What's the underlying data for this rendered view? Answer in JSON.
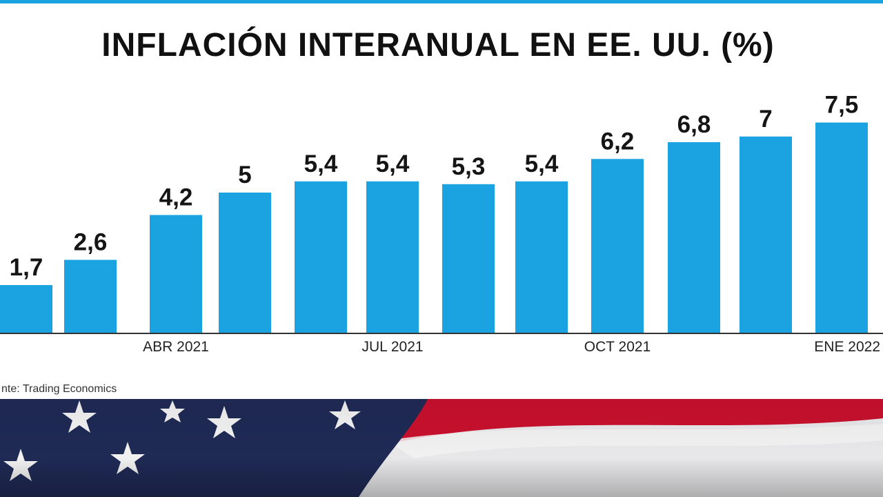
{
  "chart_data": {
    "type": "bar",
    "title": "INFLACIÓN INTERANUAL EN EE. UU. (%)",
    "categories": [
      "",
      "",
      "ABR 2021",
      "",
      "",
      "JUL 2021",
      "",
      "",
      "OCT 2021",
      "",
      "",
      "ENE 2022"
    ],
    "values": [
      1.7,
      2.6,
      4.2,
      5,
      5.4,
      5.4,
      5.3,
      5.4,
      6.2,
      6.8,
      7,
      7.5
    ],
    "value_labels": [
      "1,7",
      "2,6",
      "4,2",
      "5",
      "5,4",
      "5,4",
      "5,3",
      "5,4",
      "6,2",
      "6,8",
      "7",
      "7,5"
    ],
    "ylim": [
      0,
      8
    ],
    "xlabel": "",
    "ylabel": "",
    "grid": false,
    "bar_color": "#1aa3e0",
    "axis_color": "#333333"
  },
  "source": "nte: Trading Economics",
  "colors": {
    "accent": "#1aa3e0",
    "flag_blue": "#1f2a55",
    "flag_red": "#c8102e",
    "flag_white": "#eeeeee"
  }
}
